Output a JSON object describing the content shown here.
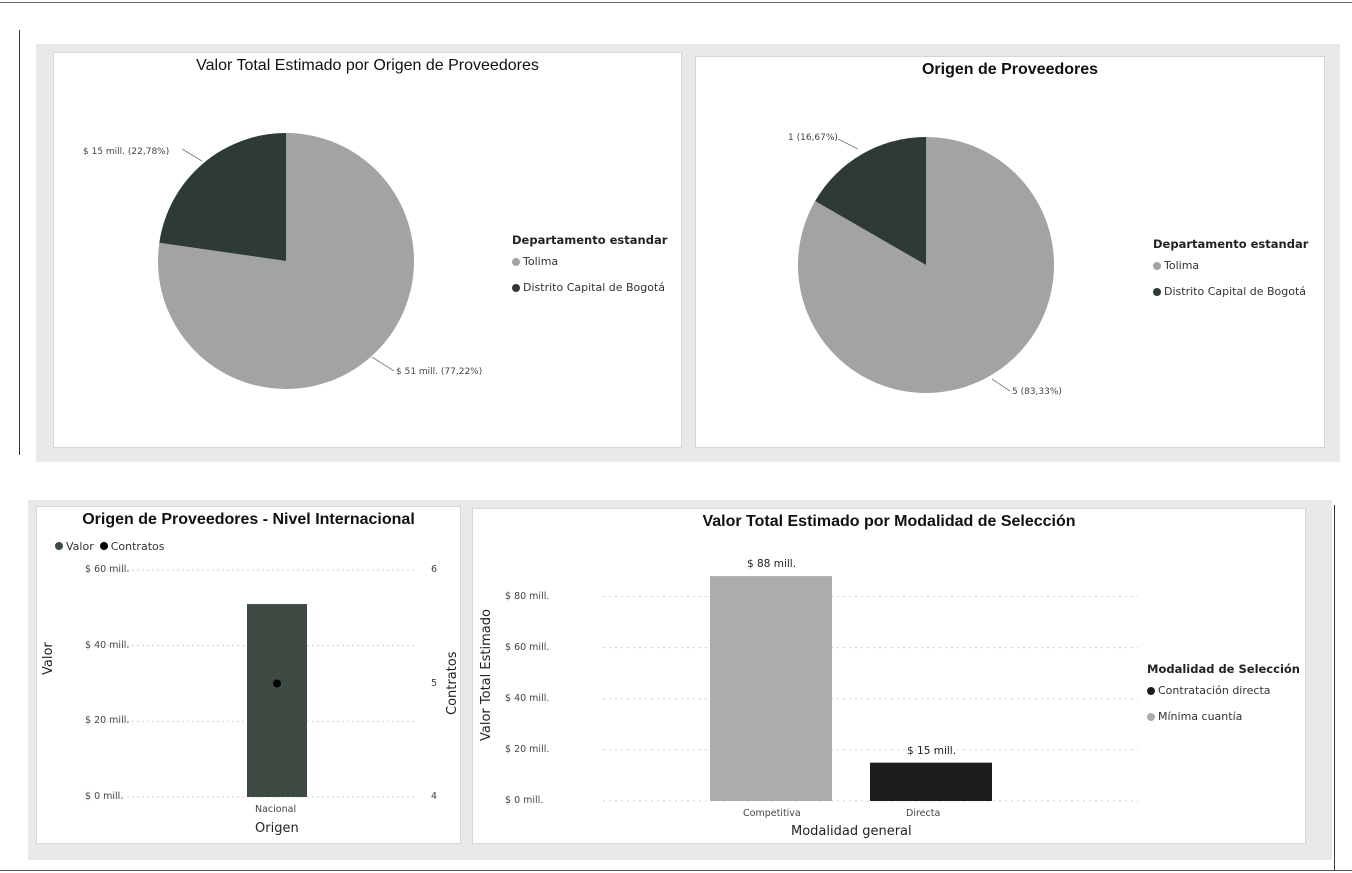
{
  "colors": {
    "tolima": "#a3a3a3",
    "bogota": "#2d3a35",
    "competitiva": "#acacac",
    "directa": "#1d1d1d",
    "nacional": "#3d4a42",
    "contratos_marker": "#000000",
    "gridline": "#cfcfcf"
  },
  "chart_data": [
    {
      "type": "pie",
      "title": "Valor Total Estimado por Origen de Proveedores",
      "legend_title": "Departamento estandar",
      "legend_placement": "right",
      "slices": [
        {
          "label": "Tolima",
          "value": 51,
          "percent": 77.22,
          "data_label": "$ 51 mill. (77,22%)"
        },
        {
          "label": "Distrito Capital de Bogotá",
          "value": 15,
          "percent": 22.78,
          "data_label": "$ 15 mill. (22,78%)"
        }
      ]
    },
    {
      "type": "pie",
      "title": "Origen de Proveedores",
      "legend_title": "Departamento estandar",
      "legend_placement": "right",
      "slices": [
        {
          "label": "Tolima",
          "value": 5,
          "percent": 83.33,
          "data_label": "5 (83,33%)"
        },
        {
          "label": "Distrito Capital de Bogotá",
          "value": 1,
          "percent": 16.67,
          "data_label": "1 (16,67%)"
        }
      ]
    },
    {
      "type": "bar",
      "title": "Origen de Proveedores - Nivel Internacional",
      "categories": [
        "Nacional"
      ],
      "series": [
        {
          "name": "Valor",
          "values": [
            51
          ],
          "axis": "left"
        },
        {
          "name": "Contratos",
          "values": [
            5
          ],
          "axis": "right",
          "marker": "point"
        }
      ],
      "xlabel": "Origen",
      "ylabel": "Valor",
      "y2label": "Contratos",
      "ylim": [
        0,
        60
      ],
      "y2lim": [
        4,
        6
      ],
      "yticks": [
        "$ 0 mill.",
        "$ 20 mill.",
        "$ 40 mill.",
        "$ 60 mill."
      ],
      "y2ticks": [
        "4",
        "5",
        "6"
      ],
      "legend_placement": "top-left",
      "grid": true
    },
    {
      "type": "bar",
      "title": "Valor Total Estimado por Modalidad de Selección",
      "categories": [
        "Competitiva",
        "Directa"
      ],
      "values": [
        88,
        15
      ],
      "data_labels": [
        "$ 88 mill.",
        "$ 15 mill."
      ],
      "xlabel": "Modalidad general",
      "ylabel": "Valor Total Estimado",
      "ylim": [
        0,
        90
      ],
      "yticks": [
        "$ 0 mill.",
        "$ 20 mill.",
        "$ 40 mill.",
        "$ 60 mill.",
        "$ 80 mill."
      ],
      "legend_title": "Modalidad de Selección",
      "legend_items": [
        "Contratación directa",
        "Mínima cuantía"
      ],
      "legend_placement": "right",
      "grid": true
    }
  ]
}
